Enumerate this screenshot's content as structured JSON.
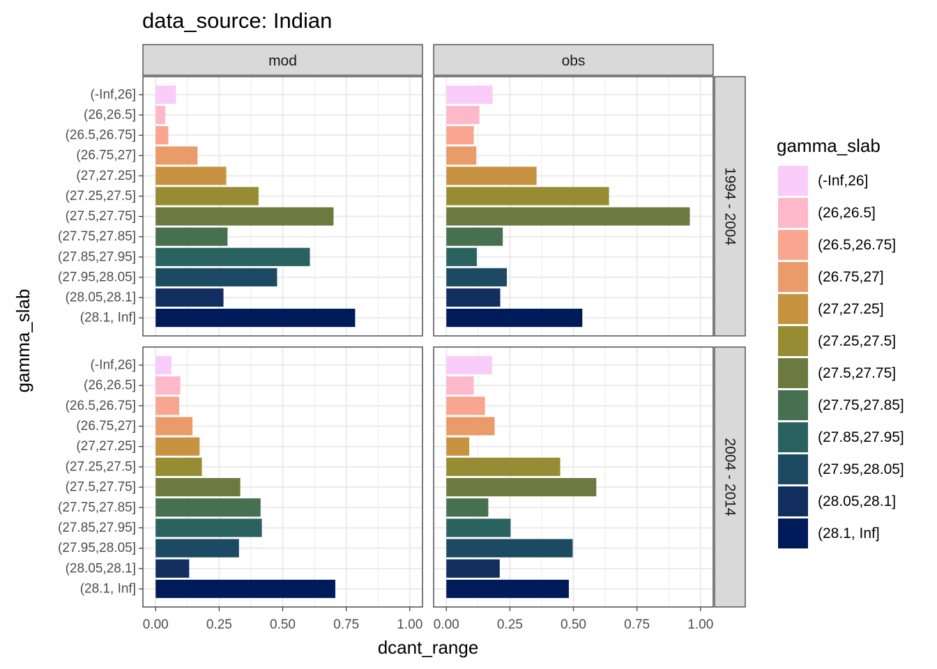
{
  "chart_data": {
    "type": "bar",
    "orientation": "horizontal",
    "title": "data_source: Indian",
    "xlabel": "dcant_range",
    "ylabel": "gamma_slab",
    "xlim": [
      0,
      1
    ],
    "x_ticks": [
      "0.00",
      "0.25",
      "0.50",
      "0.75",
      "1.00"
    ],
    "grid": true,
    "facet_columns": [
      "mod",
      "obs"
    ],
    "facet_rows": [
      "1994 - 2004",
      "2004 - 2014"
    ],
    "categories": [
      "(-Inf,26]",
      "(26,26.5]",
      "(26.5,26.75]",
      "(26.75,27]",
      "(27,27.25]",
      "(27.25,27.5]",
      "(27.5,27.75]",
      "(27.75,27.85]",
      "(27.85,27.95]",
      "(27.95,28.05]",
      "(28.05,28.1]",
      "(28.1, Inf]"
    ],
    "colors": [
      "#F9CCF9",
      "#FDB8CA",
      "#F9A590",
      "#EA9B6A",
      "#C89341",
      "#978B33",
      "#6C7A40",
      "#46704F",
      "#2A6260",
      "#1C4A63",
      "#112E5E",
      "#001B59"
    ],
    "legend": {
      "title": "gamma_slab",
      "position": "right"
    },
    "panels": [
      {
        "row": "1994 - 2004",
        "col": "mod",
        "values": [
          0.08,
          0.038,
          0.05,
          0.165,
          0.278,
          0.405,
          0.7,
          0.283,
          0.607,
          0.478,
          0.267,
          0.785
        ]
      },
      {
        "row": "1994 - 2004",
        "col": "obs",
        "values": [
          0.182,
          0.13,
          0.108,
          0.118,
          0.355,
          0.64,
          0.958,
          0.222,
          0.12,
          0.238,
          0.212,
          0.535
        ]
      },
      {
        "row": "2004 - 2014",
        "col": "mod",
        "values": [
          0.062,
          0.097,
          0.093,
          0.145,
          0.173,
          0.182,
          0.333,
          0.413,
          0.418,
          0.328,
          0.132,
          0.707
        ]
      },
      {
        "row": "2004 - 2014",
        "col": "obs",
        "values": [
          0.18,
          0.108,
          0.152,
          0.19,
          0.09,
          0.448,
          0.59,
          0.165,
          0.253,
          0.497,
          0.21,
          0.482
        ]
      }
    ]
  }
}
